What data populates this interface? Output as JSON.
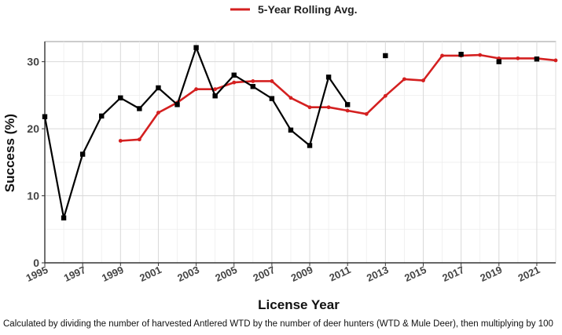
{
  "chart_data": {
    "type": "line",
    "title": "",
    "xlabel": "License Year",
    "ylabel": "Success (%)",
    "xlim": [
      1995,
      2022
    ],
    "ylim": [
      0,
      33
    ],
    "x_ticks": [
      1995,
      1997,
      1999,
      2001,
      2003,
      2005,
      2007,
      2009,
      2011,
      2013,
      2015,
      2017,
      2019,
      2021
    ],
    "y_ticks": [
      0,
      10,
      20,
      30
    ],
    "grid": true,
    "legend_position": "top-center",
    "series": [
      {
        "name": "",
        "color": "#000000",
        "marker": "square",
        "points": [
          {
            "x": 1995,
            "y": 21.8
          },
          {
            "x": 1996,
            "y": 6.7
          },
          {
            "x": 1997,
            "y": 16.2
          },
          {
            "x": 1998,
            "y": 21.9
          },
          {
            "x": 1999,
            "y": 24.6
          },
          {
            "x": 2000,
            "y": 23.0
          },
          {
            "x": 2001,
            "y": 26.1
          },
          {
            "x": 2002,
            "y": 23.6
          },
          {
            "x": 2003,
            "y": 32.1
          },
          {
            "x": 2004,
            "y": 24.9
          },
          {
            "x": 2005,
            "y": 28.0
          },
          {
            "x": 2006,
            "y": 26.3
          },
          {
            "x": 2007,
            "y": 24.5
          },
          {
            "x": 2008,
            "y": 19.8
          },
          {
            "x": 2009,
            "y": 17.5
          },
          {
            "x": 2010,
            "y": 27.7
          },
          {
            "x": 2011,
            "y": 23.6
          },
          {
            "x": 2013,
            "y": 30.9
          },
          {
            "x": 2017,
            "y": 31.1
          },
          {
            "x": 2019,
            "y": 30.0
          },
          {
            "x": 2021,
            "y": 30.4
          }
        ]
      },
      {
        "name": "5-Year Rolling Avg.",
        "color": "#d42020",
        "marker": "dot",
        "points": [
          {
            "x": 1999,
            "y": 18.2
          },
          {
            "x": 2000,
            "y": 18.4
          },
          {
            "x": 2001,
            "y": 22.4
          },
          {
            "x": 2002,
            "y": 23.9
          },
          {
            "x": 2003,
            "y": 25.9
          },
          {
            "x": 2004,
            "y": 25.9
          },
          {
            "x": 2005,
            "y": 26.9
          },
          {
            "x": 2006,
            "y": 27.1
          },
          {
            "x": 2007,
            "y": 27.1
          },
          {
            "x": 2008,
            "y": 24.6
          },
          {
            "x": 2009,
            "y": 23.2
          },
          {
            "x": 2010,
            "y": 23.2
          },
          {
            "x": 2011,
            "y": 22.7
          },
          {
            "x": 2012,
            "y": 22.2
          },
          {
            "x": 2013,
            "y": 24.9
          },
          {
            "x": 2014,
            "y": 27.4
          },
          {
            "x": 2015,
            "y": 27.2
          },
          {
            "x": 2016,
            "y": 30.9
          },
          {
            "x": 2017,
            "y": 30.9
          },
          {
            "x": 2018,
            "y": 31.0
          },
          {
            "x": 2019,
            "y": 30.5
          },
          {
            "x": 2020,
            "y": 30.5
          },
          {
            "x": 2021,
            "y": 30.5
          },
          {
            "x": 2022,
            "y": 30.2
          }
        ]
      }
    ],
    "caption": "Calculated by dividing the number of harvested Antlered WTD by the number of deer hunters (WTD & Mule Deer), then multiplying by 100"
  }
}
